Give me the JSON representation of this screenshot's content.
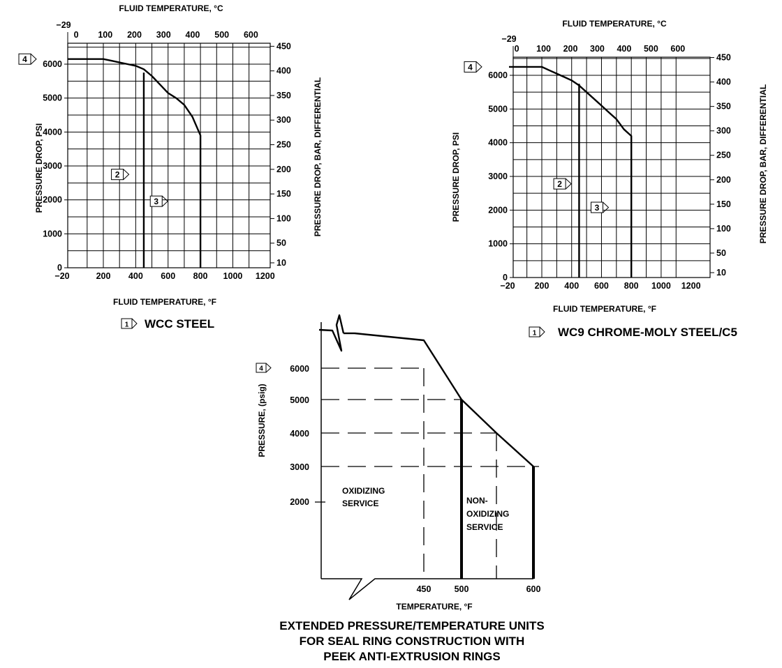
{
  "chart_data": [
    {
      "type": "line",
      "title": "WCC STEEL",
      "title_marker": "1",
      "xlabel": "FLUID TEMPERATURE, °F",
      "x2label": "FLUID TEMPERATURE, °C",
      "ylabel": "PRESSURE DROP, PSI",
      "y2label": "PRESSURE DROP, BAR, DIFFERENTIAL",
      "xlim": [
        -20,
        1200
      ],
      "ylim": [
        0,
        6500
      ],
      "x_ticks": [
        "−20",
        "200",
        "400",
        "600",
        "800",
        "1000",
        "1200"
      ],
      "y_ticks": [
        "0",
        "1000",
        "2000",
        "3000",
        "4000",
        "5000",
        "6000"
      ],
      "x2_ticks": [
        "−29",
        "0",
        "100",
        "200",
        "300",
        "400",
        "500",
        "600"
      ],
      "y2_ticks": [
        "10",
        "50",
        "100",
        "150",
        "200",
        "250",
        "300",
        "350",
        "400",
        "450"
      ],
      "grid": true,
      "series": [
        {
          "x": [
            -20,
            200,
            250,
            300,
            350,
            400,
            450,
            500,
            550,
            600,
            650,
            700,
            750,
            800,
            800
          ],
          "y": [
            6150,
            6150,
            6100,
            6050,
            6000,
            5950,
            5850,
            5650,
            5400,
            5150,
            5000,
            4800,
            4450,
            3900,
            0
          ]
        }
      ],
      "vertical_lines": [
        {
          "x": 450,
          "y_top": 5750
        }
      ],
      "markers": [
        {
          "label": "2",
          "x": 250,
          "y": 2750
        },
        {
          "label": "3",
          "x": 490,
          "y": 1960
        },
        {
          "label": "4",
          "x": -20,
          "y": 6150
        }
      ]
    },
    {
      "type": "line",
      "title": "WC9 CHROME-MOLY STEEL/C5",
      "title_marker": "1",
      "xlabel": "FLUID TEMPERATURE, °F",
      "x2label": "FLUID TEMPERATURE, °C",
      "ylabel": "PRESSURE DROP, PSI",
      "y2label": "PRESSURE DROP, BAR, DIFFERENTIAL",
      "xlim": [
        -20,
        1200
      ],
      "ylim": [
        0,
        6500
      ],
      "x_ticks": [
        "−20",
        "200",
        "400",
        "600",
        "800",
        "1000",
        "1200"
      ],
      "y_ticks": [
        "0",
        "1000",
        "2000",
        "3000",
        "4000",
        "5000",
        "6000"
      ],
      "x2_ticks": [
        "−29",
        "0",
        "100",
        "200",
        "300",
        "400",
        "500",
        "600"
      ],
      "y2_ticks": [
        "10",
        "50",
        "100",
        "150",
        "200",
        "250",
        "300",
        "350",
        "400",
        "450"
      ],
      "grid": true,
      "series": [
        {
          "x": [
            -20,
            200,
            250,
            300,
            350,
            400,
            450,
            500,
            550,
            600,
            650,
            700,
            750,
            800,
            800
          ],
          "y": [
            6250,
            6250,
            6150,
            6050,
            5950,
            5850,
            5700,
            5500,
            5300,
            5100,
            4900,
            4700,
            4400,
            4200,
            0
          ]
        }
      ],
      "vertical_lines": [
        {
          "x": 450,
          "y_top": 5750
        }
      ],
      "markers": [
        {
          "label": "2",
          "x": 280,
          "y": 2780
        },
        {
          "label": "3",
          "x": 530,
          "y": 2080
        },
        {
          "label": "4",
          "x": -20,
          "y": 6250
        }
      ]
    },
    {
      "type": "line",
      "title": "EXTENDED PRESSURE/TEMPERATURE UNITS FOR SEAL RING CONSTRUCTION WITH PEEK ANTI-EXTRUSION RINGS",
      "title_lines": [
        "EXTENDED PRESSURE/TEMPERATURE UNITS",
        "FOR SEAL RING CONSTRUCTION WITH",
        "PEEK ANTI-EXTRUSION RINGS"
      ],
      "xlabel": "TEMPERATURE, °F",
      "ylabel": "PRESSURE, (psig)",
      "x_ticks": [
        "450",
        "500",
        "600"
      ],
      "y_ticks": [
        "2000",
        "3000",
        "4000",
        "5000",
        "6000"
      ],
      "series": [
        {
          "x": [
            450,
            500,
            600
          ],
          "y": [
            6250,
            5000,
            3000
          ]
        }
      ],
      "vertical_lines": [
        {
          "x": 500,
          "y_top": 5000
        },
        {
          "x": 600,
          "y_top": 3000
        }
      ],
      "regions": [
        {
          "label_lines": [
            "OXIDIZING",
            "SERVICE"
          ]
        },
        {
          "label_lines": [
            "NON-",
            "OXIDIZING",
            "SERVICE"
          ]
        }
      ],
      "markers": [
        {
          "label": "4",
          "y": 6000
        }
      ]
    }
  ]
}
